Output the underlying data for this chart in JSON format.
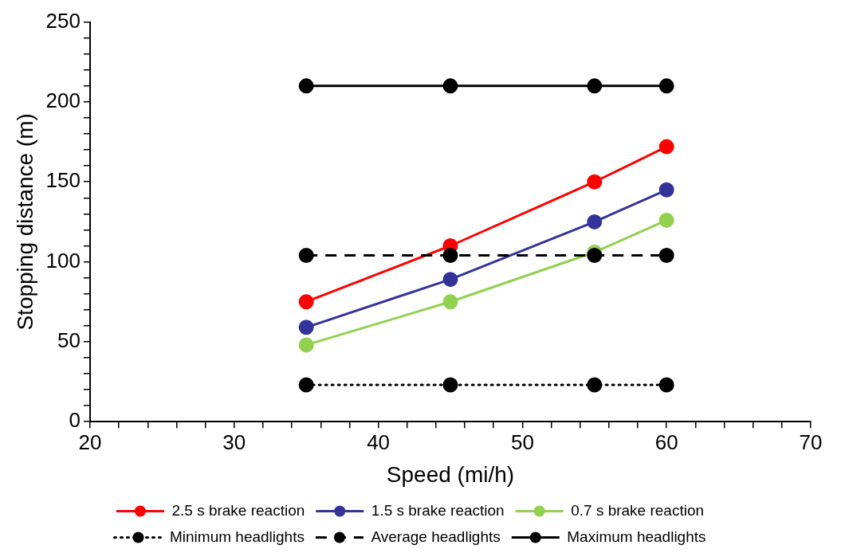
{
  "chart_data": {
    "type": "line",
    "xlabel": "Speed (mi/h)",
    "ylabel": "Stopping distance (m)",
    "x": [
      35,
      45,
      55,
      60
    ],
    "xlim": [
      20,
      70
    ],
    "xticks": [
      20,
      {
        "value": 22,
        "label": null
      },
      {
        "value": 24,
        "label": null
      },
      {
        "value": 26,
        "label": null
      },
      {
        "value": 28,
        "label": null
      },
      30,
      {
        "value": 32,
        "label": null
      },
      {
        "value": 34,
        "label": null
      },
      {
        "value": 36,
        "label": null
      },
      {
        "value": 38,
        "label": null
      },
      40,
      {
        "value": 42,
        "label": null
      },
      {
        "value": 44,
        "label": null
      },
      {
        "value": 46,
        "label": null
      },
      {
        "value": 48,
        "label": null
      },
      50,
      {
        "value": 52,
        "label": null
      },
      {
        "value": 54,
        "label": null
      },
      {
        "value": 56,
        "label": null
      },
      {
        "value": 58,
        "label": null
      },
      60,
      {
        "value": 62,
        "label": null
      },
      {
        "value": 64,
        "label": null
      },
      {
        "value": 66,
        "label": null
      },
      {
        "value": 68,
        "label": null
      },
      70
    ],
    "ylim": [
      0,
      250
    ],
    "yticks": [
      0,
      {
        "value": 10,
        "label": null
      },
      {
        "value": 20,
        "label": null
      },
      {
        "value": 30,
        "label": null
      },
      {
        "value": 40,
        "label": null
      },
      50,
      {
        "value": 60,
        "label": null
      },
      {
        "value": 70,
        "label": null
      },
      {
        "value": 80,
        "label": null
      },
      {
        "value": 90,
        "label": null
      },
      100,
      {
        "value": 110,
        "label": null
      },
      {
        "value": 120,
        "label": null
      },
      {
        "value": 130,
        "label": null
      },
      {
        "value": 140,
        "label": null
      },
      150,
      {
        "value": 160,
        "label": null
      },
      {
        "value": 170,
        "label": null
      },
      {
        "value": 180,
        "label": null
      },
      {
        "value": 190,
        "label": null
      },
      200,
      {
        "value": 210,
        "label": null
      },
      {
        "value": 220,
        "label": null
      },
      {
        "value": 230,
        "label": null
      },
      {
        "value": 240,
        "label": null
      },
      250
    ],
    "grid": false,
    "legend": "bottom",
    "marker": "circle",
    "line_style": "solid",
    "series": [
      {
        "name": "2.5 s brake reaction",
        "color": "#ff0000",
        "values": [
          75,
          110,
          150,
          172
        ]
      },
      {
        "name": "1.5 s brake reaction",
        "color": "#333399",
        "values": [
          59,
          89,
          125,
          145
        ]
      },
      {
        "name": "0.7 s brake reaction",
        "color": "#92d050",
        "values": [
          48,
          75,
          106,
          126
        ]
      },
      {
        "name": "Minimum headlights",
        "color": "#000000",
        "line_style": "dotted",
        "values": [
          23,
          23,
          23,
          23
        ]
      },
      {
        "name": "Average headlights",
        "color": "#000000",
        "line_style": "dashed",
        "values": [
          104,
          104,
          104,
          104
        ]
      },
      {
        "name": "Maximum headlights",
        "color": "#000000",
        "line_style": "solid",
        "values": [
          210,
          210,
          210,
          210
        ]
      }
    ]
  }
}
